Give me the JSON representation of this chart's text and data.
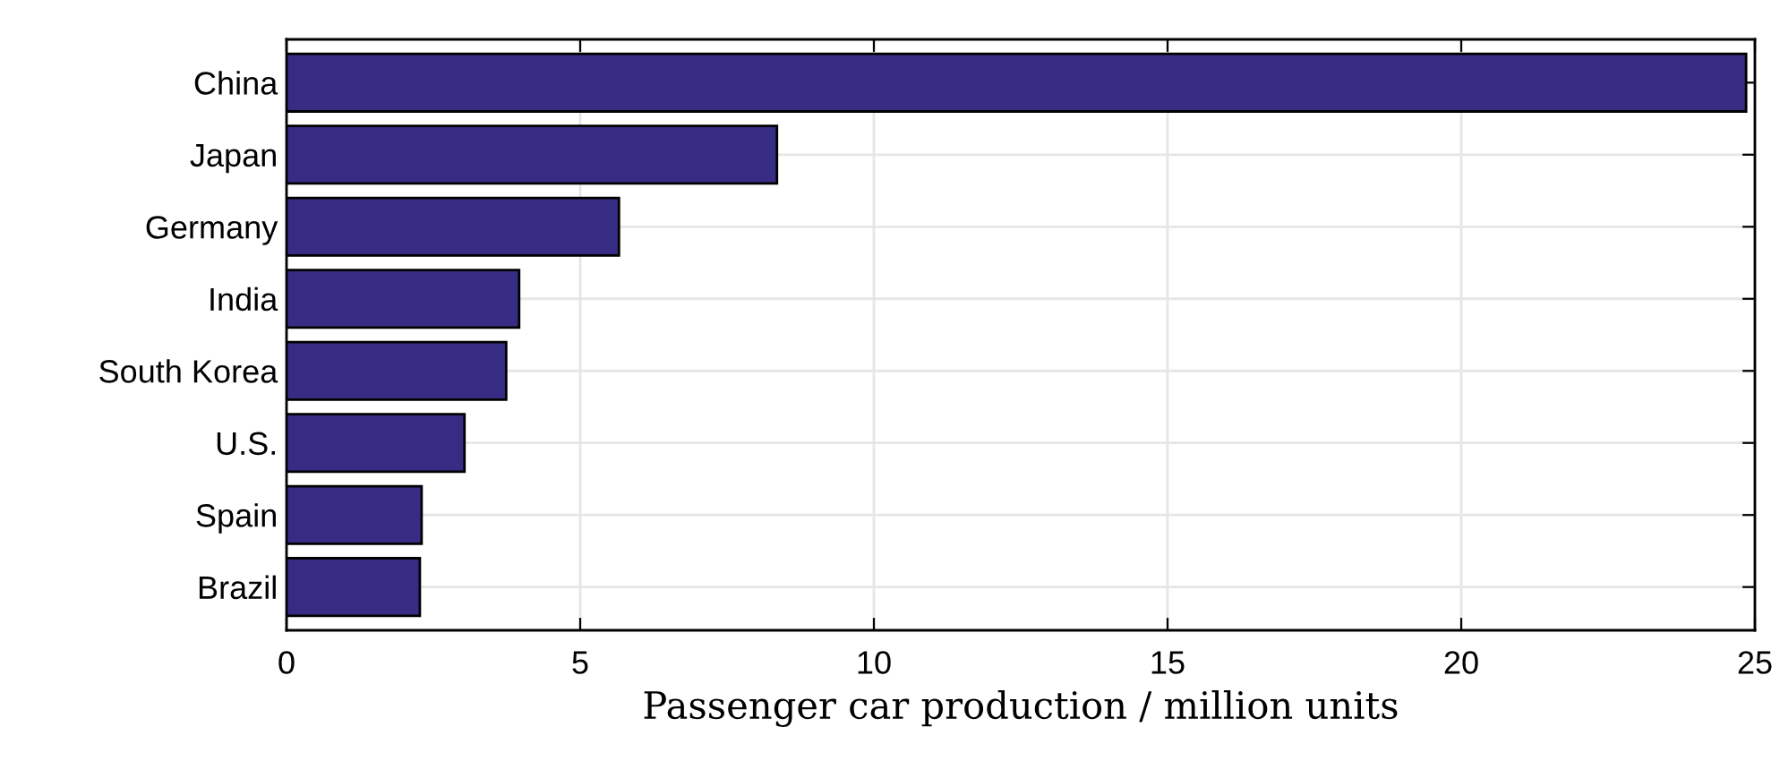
{
  "chart_data": {
    "type": "bar",
    "orientation": "horizontal",
    "categories": [
      "China",
      "Japan",
      "Germany",
      "India",
      "South Korea",
      "U.S.",
      "Spain",
      "Brazil"
    ],
    "values": [
      24.85,
      8.35,
      5.66,
      3.96,
      3.74,
      3.03,
      2.3,
      2.27
    ],
    "color": "#372c84",
    "xlim": [
      0,
      25
    ],
    "xticks": [
      0,
      5,
      10,
      15,
      20,
      25
    ],
    "xlabel": "Passenger car production / million units",
    "grid": true
  }
}
